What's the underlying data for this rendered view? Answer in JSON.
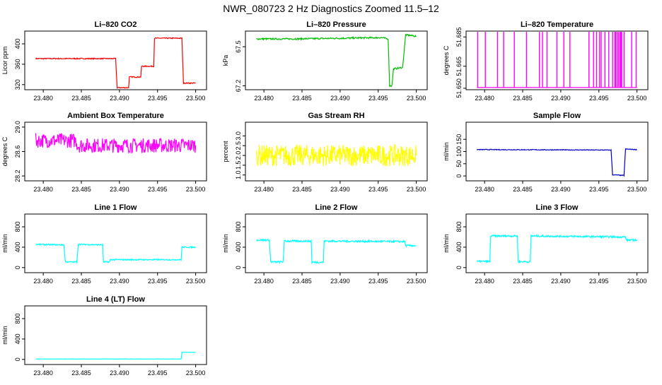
{
  "figure_title": "NWR_080723  2 Hz Diagnostics Zoomed 11.5–12",
  "chart_data": [
    {
      "type": "line",
      "title": "Li–820 CO2",
      "ylabel": "Licor ppm",
      "xlabel": "",
      "color": "#ff0000",
      "xlim": [
        23.4785,
        23.5005
      ],
      "ylim": [
        310,
        425
      ],
      "xticks": [
        "23.480",
        "23.485",
        "23.490",
        "23.495",
        "23.500"
      ],
      "yticks": [
        "320",
        "360",
        "400"
      ],
      "series": [
        {
          "x": [
            23.479,
            23.4895,
            23.4897,
            23.4912,
            23.4913,
            23.4928,
            23.4929,
            23.4945,
            23.4946,
            23.4982,
            23.4984,
            23.5
          ],
          "y": [
            371,
            371,
            314,
            314,
            335,
            335,
            356,
            356,
            411,
            411,
            323,
            323
          ],
          "noise": 1
        }
      ]
    },
    {
      "type": "line",
      "title": "Li–820 Pressure",
      "ylabel": "kPa",
      "xlabel": "",
      "color": "#00c000",
      "xlim": [
        23.4785,
        23.5005
      ],
      "ylim": [
        67.17,
        67.62
      ],
      "xticks": [
        "23.480",
        "23.485",
        "23.490",
        "23.495",
        "23.500"
      ],
      "yticks": [
        "67.2",
        "67.5"
      ],
      "series": [
        {
          "x": [
            23.479,
            23.484,
            23.49,
            23.4955,
            23.4963,
            23.4965,
            23.4968,
            23.497,
            23.4982,
            23.4986,
            23.4988,
            23.5
          ],
          "y": [
            67.56,
            67.56,
            67.565,
            67.57,
            67.56,
            67.2,
            67.2,
            67.33,
            67.34,
            67.59,
            67.59,
            67.58
          ],
          "noise": 0.006
        }
      ]
    },
    {
      "type": "line",
      "title": "Li–820 Temperature",
      "ylabel": "degrees C",
      "xlabel": "",
      "color": "#ff00ff",
      "xlim": [
        23.4785,
        23.5005
      ],
      "ylim": [
        51.649,
        51.689
      ],
      "xticks": [
        "23.480",
        "23.485",
        "23.490",
        "23.495",
        "23.500"
      ],
      "yticks": [
        "51.650",
        "51.665",
        "51.685"
      ],
      "series": [
        {
          "x": [
            23.479,
            23.5
          ],
          "y": [
            51.6505,
            51.6505
          ],
          "noise": 0,
          "spikes": [
            23.4791,
            23.4801,
            23.4817,
            23.4825,
            23.4839,
            23.4855,
            23.4872,
            23.4876,
            23.4882,
            23.4895,
            23.4904,
            23.4912,
            23.4937,
            23.4943,
            23.4947,
            23.4951,
            23.4953,
            23.4958,
            23.4963,
            23.4968,
            23.4971,
            23.4972,
            23.4974,
            23.4976,
            23.4978,
            23.4979,
            23.498,
            23.4983,
            23.4993,
            23.4999
          ],
          "spike_top": 51.6885
        }
      ]
    },
    {
      "type": "line",
      "title": "Ambient Box Temperature",
      "ylabel": "degrees C",
      "xlabel": "",
      "color": "#ff00ff",
      "xlim": [
        23.4785,
        23.5005
      ],
      "ylim": [
        28.12,
        29.08
      ],
      "xticks": [
        "23.480",
        "23.485",
        "23.490",
        "23.495",
        "23.500"
      ],
      "yticks": [
        "28.2",
        "28.6",
        "29.0"
      ],
      "series": [
        {
          "x": [
            23.479,
            23.4843,
            23.4845,
            23.5
          ],
          "y": [
            28.78,
            28.78,
            28.7,
            28.7
          ],
          "noise": 0.12
        }
      ]
    },
    {
      "type": "line",
      "title": "Gas Stream RH",
      "ylabel": "percent",
      "xlabel": "",
      "color": "#ffff00",
      "xlim": [
        23.4785,
        23.5005
      ],
      "ylim": [
        0.7,
        3.7
      ],
      "xticks": [
        "23.480",
        "23.485",
        "23.490",
        "23.495",
        "23.500"
      ],
      "yticks": [
        "1.0",
        "1.5",
        "2.0",
        "2.5",
        "3.0"
      ],
      "series": [
        {
          "x": [
            23.479,
            23.5
          ],
          "y": [
            2.0,
            2.0
          ],
          "noise": 0.55
        }
      ]
    },
    {
      "type": "line",
      "title": "Sample Flow",
      "ylabel": "ml/min",
      "xlabel": "",
      "color": "#0000cc",
      "xlim": [
        23.4785,
        23.5005
      ],
      "ylim": [
        -20,
        220
      ],
      "xticks": [
        "23.480",
        "23.485",
        "23.490",
        "23.495",
        "23.500"
      ],
      "yticks": [
        "0",
        "50",
        "100",
        "150"
      ],
      "series": [
        {
          "x": [
            23.479,
            23.4965,
            23.4966,
            23.4968,
            23.4982,
            23.4983,
            23.4985,
            23.5
          ],
          "y": [
            108,
            106,
            106,
            5,
            2,
            2,
            110,
            108
          ],
          "noise": 1.5
        }
      ]
    },
    {
      "type": "line",
      "title": "Line 1 Flow",
      "ylabel": "ml/min",
      "xlabel": "",
      "color": "#00ffff",
      "xlim": [
        23.4785,
        23.5005
      ],
      "ylim": [
        -100,
        1050
      ],
      "xticks": [
        "23.480",
        "23.485",
        "23.490",
        "23.495",
        "23.500"
      ],
      "yticks": [
        "0",
        "400",
        "800"
      ],
      "series": [
        {
          "x": [
            23.479,
            23.4827,
            23.4829,
            23.4844,
            23.4846,
            23.4878,
            23.4879,
            23.4887,
            23.4888,
            23.4981,
            23.4982,
            23.5
          ],
          "y": [
            455,
            445,
            110,
            110,
            455,
            445,
            110,
            110,
            155,
            155,
            400,
            400
          ],
          "noise": 12
        }
      ]
    },
    {
      "type": "line",
      "title": "Line 2 Flow",
      "ylabel": "ml/min",
      "xlabel": "",
      "color": "#00ffff",
      "xlim": [
        23.4785,
        23.5005
      ],
      "ylim": [
        -100,
        1050
      ],
      "xticks": [
        "23.480",
        "23.485",
        "23.490",
        "23.495",
        "23.500"
      ],
      "yticks": [
        "0",
        "400",
        "800"
      ],
      "series": [
        {
          "x": [
            23.479,
            23.4807,
            23.4809,
            23.4825,
            23.4827,
            23.4862,
            23.4863,
            23.4878,
            23.4879,
            23.4985,
            23.4986,
            23.5
          ],
          "y": [
            540,
            540,
            110,
            110,
            520,
            520,
            105,
            105,
            520,
            510,
            430,
            430
          ],
          "noise": 18
        }
      ]
    },
    {
      "type": "line",
      "title": "Line 3 Flow",
      "ylabel": "ml/min",
      "xlabel": "",
      "color": "#00ffff",
      "xlim": [
        23.4785,
        23.5005
      ],
      "ylim": [
        -100,
        1050
      ],
      "xticks": [
        "23.480",
        "23.485",
        "23.490",
        "23.495",
        "23.500"
      ],
      "yticks": [
        "0",
        "400",
        "800"
      ],
      "series": [
        {
          "x": [
            23.479,
            23.4807,
            23.4808,
            23.4843,
            23.4844,
            23.486,
            23.4861,
            23.4985,
            23.4986,
            23.5
          ],
          "y": [
            120,
            120,
            620,
            620,
            115,
            115,
            620,
            600,
            540,
            540
          ],
          "noise": 18
        }
      ]
    },
    {
      "type": "line",
      "title": "Line 4 (LT) Flow",
      "ylabel": "ml/min",
      "xlabel": "",
      "color": "#00ffff",
      "xlim": [
        23.4785,
        23.5005
      ],
      "ylim": [
        -100,
        1050
      ],
      "xticks": [
        "23.480",
        "23.485",
        "23.490",
        "23.495",
        "23.500"
      ],
      "yticks": [
        "0",
        "400",
        "800"
      ],
      "series": [
        {
          "x": [
            23.479,
            23.4981,
            23.4982,
            23.5
          ],
          "y": [
            8,
            8,
            140,
            140
          ],
          "noise": 3
        }
      ]
    }
  ]
}
